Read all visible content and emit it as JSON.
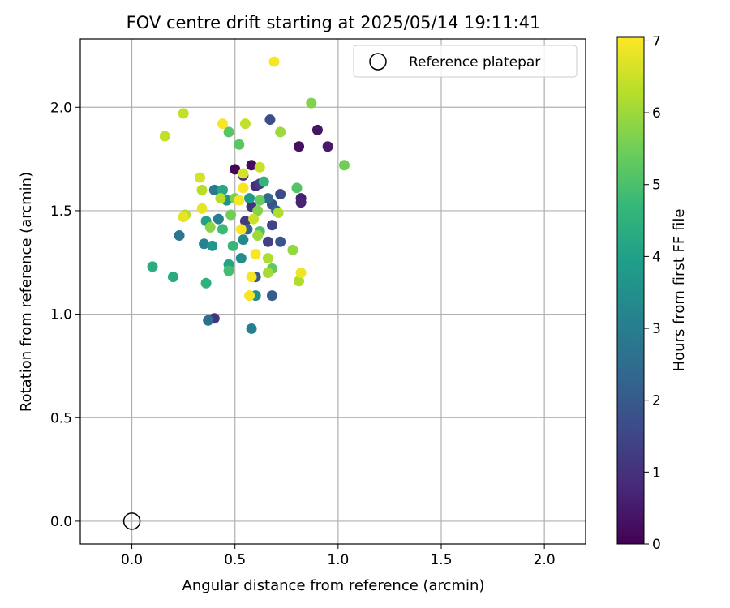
{
  "chart_data": {
    "type": "scatter",
    "title": "FOV centre drift starting at 2025/05/14 19:11:41",
    "xlabel": "Angular distance from reference (arcmin)",
    "ylabel": "Rotation from reference (arcmin)",
    "xlim": [
      -0.25,
      2.2
    ],
    "ylim": [
      -0.11,
      2.33
    ],
    "xticks": [
      "0.0",
      "0.5",
      "1.0",
      "1.5",
      "2.0"
    ],
    "yticks": [
      "0.0",
      "0.5",
      "1.0",
      "1.5",
      "2.0"
    ],
    "xtick_values": [
      0,
      0.5,
      1.0,
      1.5,
      2.0
    ],
    "ytick_values": [
      0,
      0.5,
      1.0,
      1.5,
      2.0
    ],
    "grid": true,
    "legend": {
      "placement": "top-right",
      "entries": [
        "Reference platepar"
      ]
    },
    "reference_point": {
      "x": 0.0,
      "y": 0.0,
      "label": "Reference platepar"
    },
    "colorbar": {
      "label": "Hours from first FF file",
      "min": 0,
      "max": 7.05,
      "ticks": [
        "0",
        "1",
        "2",
        "3",
        "4",
        "5",
        "6",
        "7"
      ],
      "tick_values": [
        0,
        1,
        2,
        3,
        4,
        5,
        6,
        7
      ],
      "colormap": [
        "#440154",
        "#482878",
        "#3e4989",
        "#31688e",
        "#26828e",
        "#1f9e89",
        "#35b779",
        "#6ece58",
        "#b5de2b",
        "#fde725"
      ]
    },
    "points": [
      {
        "x": 0.5,
        "y": 1.7,
        "t": 0.1
      },
      {
        "x": 0.58,
        "y": 1.72,
        "t": 0.2
      },
      {
        "x": 0.81,
        "y": 1.81,
        "t": 0.3
      },
      {
        "x": 0.9,
        "y": 1.89,
        "t": 0.4
      },
      {
        "x": 0.95,
        "y": 1.81,
        "t": 0.5
      },
      {
        "x": 0.82,
        "y": 1.56,
        "t": 0.6
      },
      {
        "x": 0.82,
        "y": 1.54,
        "t": 0.7
      },
      {
        "x": 0.54,
        "y": 1.67,
        "t": 0.8
      },
      {
        "x": 0.6,
        "y": 1.62,
        "t": 0.9
      },
      {
        "x": 0.58,
        "y": 1.52,
        "t": 1.0
      },
      {
        "x": 0.4,
        "y": 0.98,
        "t": 1.1
      },
      {
        "x": 0.55,
        "y": 1.45,
        "t": 1.2
      },
      {
        "x": 0.62,
        "y": 1.63,
        "t": 1.3
      },
      {
        "x": 0.66,
        "y": 1.35,
        "t": 1.4
      },
      {
        "x": 0.68,
        "y": 1.43,
        "t": 1.5
      },
      {
        "x": 0.72,
        "y": 1.58,
        "t": 1.6
      },
      {
        "x": 0.67,
        "y": 1.94,
        "t": 1.7
      },
      {
        "x": 0.68,
        "y": 1.53,
        "t": 1.8
      },
      {
        "x": 0.72,
        "y": 1.35,
        "t": 1.9
      },
      {
        "x": 0.6,
        "y": 1.18,
        "t": 2.0
      },
      {
        "x": 0.68,
        "y": 1.09,
        "t": 2.1
      },
      {
        "x": 0.56,
        "y": 1.41,
        "t": 2.2
      },
      {
        "x": 0.7,
        "y": 1.5,
        "t": 2.3
      },
      {
        "x": 0.66,
        "y": 1.56,
        "t": 2.4
      },
      {
        "x": 0.37,
        "y": 0.97,
        "t": 2.6
      },
      {
        "x": 0.23,
        "y": 1.38,
        "t": 2.8
      },
      {
        "x": 0.4,
        "y": 1.6,
        "t": 2.9
      },
      {
        "x": 0.42,
        "y": 1.46,
        "t": 3.0
      },
      {
        "x": 0.58,
        "y": 0.93,
        "t": 3.1
      },
      {
        "x": 0.35,
        "y": 1.34,
        "t": 3.2
      },
      {
        "x": 0.54,
        "y": 1.36,
        "t": 3.3
      },
      {
        "x": 0.53,
        "y": 1.27,
        "t": 3.4
      },
      {
        "x": 0.6,
        "y": 1.09,
        "t": 3.5
      },
      {
        "x": 0.46,
        "y": 1.55,
        "t": 3.6
      },
      {
        "x": 0.39,
        "y": 1.33,
        "t": 3.7
      },
      {
        "x": 0.57,
        "y": 1.56,
        "t": 3.8
      },
      {
        "x": 0.36,
        "y": 1.45,
        "t": 4.0
      },
      {
        "x": 0.47,
        "y": 1.24,
        "t": 4.1
      },
      {
        "x": 0.44,
        "y": 1.6,
        "t": 4.2
      },
      {
        "x": 0.2,
        "y": 1.18,
        "t": 4.3
      },
      {
        "x": 0.1,
        "y": 1.23,
        "t": 4.4
      },
      {
        "x": 0.36,
        "y": 1.15,
        "t": 4.5
      },
      {
        "x": 0.64,
        "y": 1.64,
        "t": 4.6
      },
      {
        "x": 0.49,
        "y": 1.33,
        "t": 4.7
      },
      {
        "x": 0.44,
        "y": 1.41,
        "t": 4.8
      },
      {
        "x": 0.47,
        "y": 1.21,
        "t": 4.9
      },
      {
        "x": 0.62,
        "y": 1.4,
        "t": 5.0
      },
      {
        "x": 0.8,
        "y": 1.61,
        "t": 5.1
      },
      {
        "x": 0.52,
        "y": 1.82,
        "t": 5.2
      },
      {
        "x": 0.47,
        "y": 1.88,
        "t": 5.2
      },
      {
        "x": 0.68,
        "y": 1.22,
        "t": 5.3
      },
      {
        "x": 0.62,
        "y": 1.55,
        "t": 5.4
      },
      {
        "x": 0.48,
        "y": 1.48,
        "t": 5.5
      },
      {
        "x": 0.5,
        "y": 1.56,
        "t": 5.6
      },
      {
        "x": 0.61,
        "y": 1.5,
        "t": 5.7
      },
      {
        "x": 0.38,
        "y": 1.42,
        "t": 5.8
      },
      {
        "x": 0.78,
        "y": 1.31,
        "t": 5.9
      },
      {
        "x": 1.03,
        "y": 1.72,
        "t": 5.5
      },
      {
        "x": 0.87,
        "y": 2.02,
        "t": 5.7
      },
      {
        "x": 0.72,
        "y": 1.88,
        "t": 6.0
      },
      {
        "x": 0.61,
        "y": 1.38,
        "t": 6.0
      },
      {
        "x": 0.66,
        "y": 1.2,
        "t": 6.1
      },
      {
        "x": 0.66,
        "y": 1.27,
        "t": 6.2
      },
      {
        "x": 0.81,
        "y": 1.16,
        "t": 6.2
      },
      {
        "x": 0.71,
        "y": 1.49,
        "t": 6.2
      },
      {
        "x": 0.34,
        "y": 1.6,
        "t": 6.3
      },
      {
        "x": 0.43,
        "y": 1.56,
        "t": 6.3
      },
      {
        "x": 0.26,
        "y": 1.48,
        "t": 6.3
      },
      {
        "x": 0.16,
        "y": 1.86,
        "t": 6.4
      },
      {
        "x": 0.25,
        "y": 1.97,
        "t": 6.4
      },
      {
        "x": 0.55,
        "y": 1.92,
        "t": 6.4
      },
      {
        "x": 0.59,
        "y": 1.46,
        "t": 6.5
      },
      {
        "x": 0.62,
        "y": 1.71,
        "t": 6.5
      },
      {
        "x": 0.33,
        "y": 1.66,
        "t": 6.6
      },
      {
        "x": 0.54,
        "y": 1.68,
        "t": 6.6
      },
      {
        "x": 0.34,
        "y": 1.51,
        "t": 6.8
      },
      {
        "x": 0.25,
        "y": 1.47,
        "t": 6.8
      },
      {
        "x": 0.44,
        "y": 1.92,
        "t": 7.0
      },
      {
        "x": 0.69,
        "y": 2.22,
        "t": 7.0
      },
      {
        "x": 0.52,
        "y": 1.55,
        "t": 7.0
      },
      {
        "x": 0.53,
        "y": 1.41,
        "t": 7.0
      },
      {
        "x": 0.54,
        "y": 1.61,
        "t": 7.0
      },
      {
        "x": 0.6,
        "y": 1.29,
        "t": 7.0
      },
      {
        "x": 0.58,
        "y": 1.18,
        "t": 7.0
      },
      {
        "x": 0.57,
        "y": 1.09,
        "t": 7.0
      },
      {
        "x": 0.82,
        "y": 1.2,
        "t": 6.9
      }
    ]
  }
}
